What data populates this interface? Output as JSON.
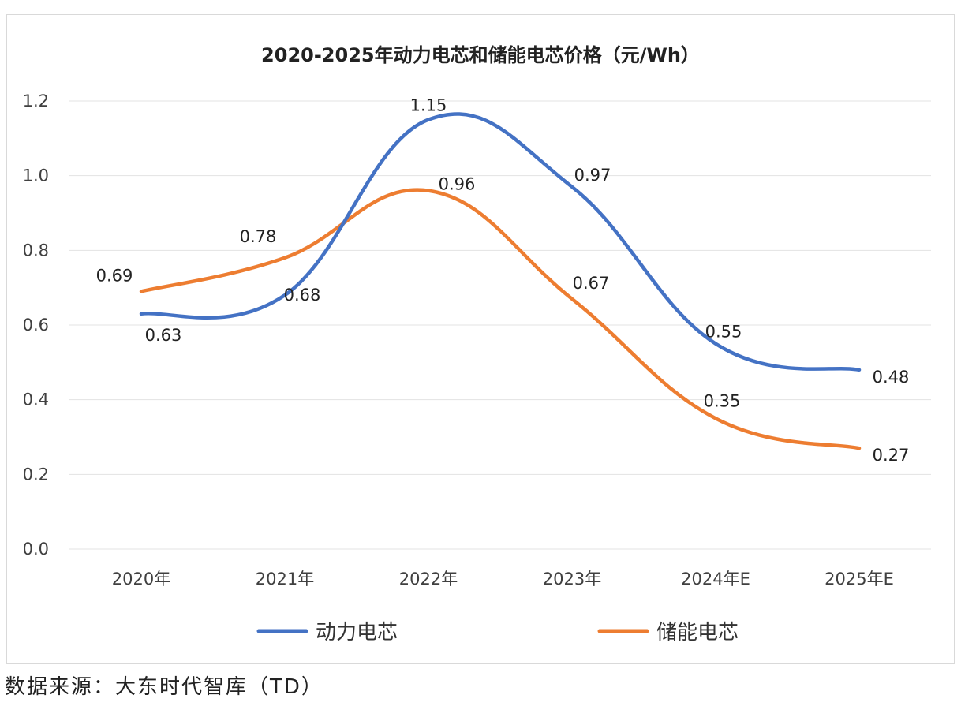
{
  "source": "数据来源：大东时代智库（TD）",
  "chart_data": {
    "type": "line",
    "title": "2020-2025年动力电芯和储能电芯价格（元/Wh）",
    "categories": [
      "2020年",
      "2021年",
      "2022年",
      "2023年",
      "2024年E",
      "2025年E"
    ],
    "y_ticks": [
      "0.0",
      "0.2",
      "0.4",
      "0.6",
      "0.8",
      "1.0",
      "1.2"
    ],
    "ylim": [
      0,
      1.2
    ],
    "grid": true,
    "legend_position": "bottom",
    "series": [
      {
        "name": "动力电芯",
        "color": "#4472c4",
        "values": [
          0.63,
          0.68,
          1.15,
          0.97,
          0.55,
          0.48
        ],
        "labels": [
          "0.63",
          "0.68",
          "1.15",
          "0.97",
          "0.55",
          "0.48"
        ]
      },
      {
        "name": "储能电芯",
        "color": "#ed7d31",
        "values": [
          0.69,
          0.78,
          0.96,
          0.67,
          0.35,
          0.27
        ],
        "labels": [
          "0.69",
          "0.78",
          "0.96",
          "0.67",
          "0.35",
          "0.27"
        ]
      }
    ]
  }
}
